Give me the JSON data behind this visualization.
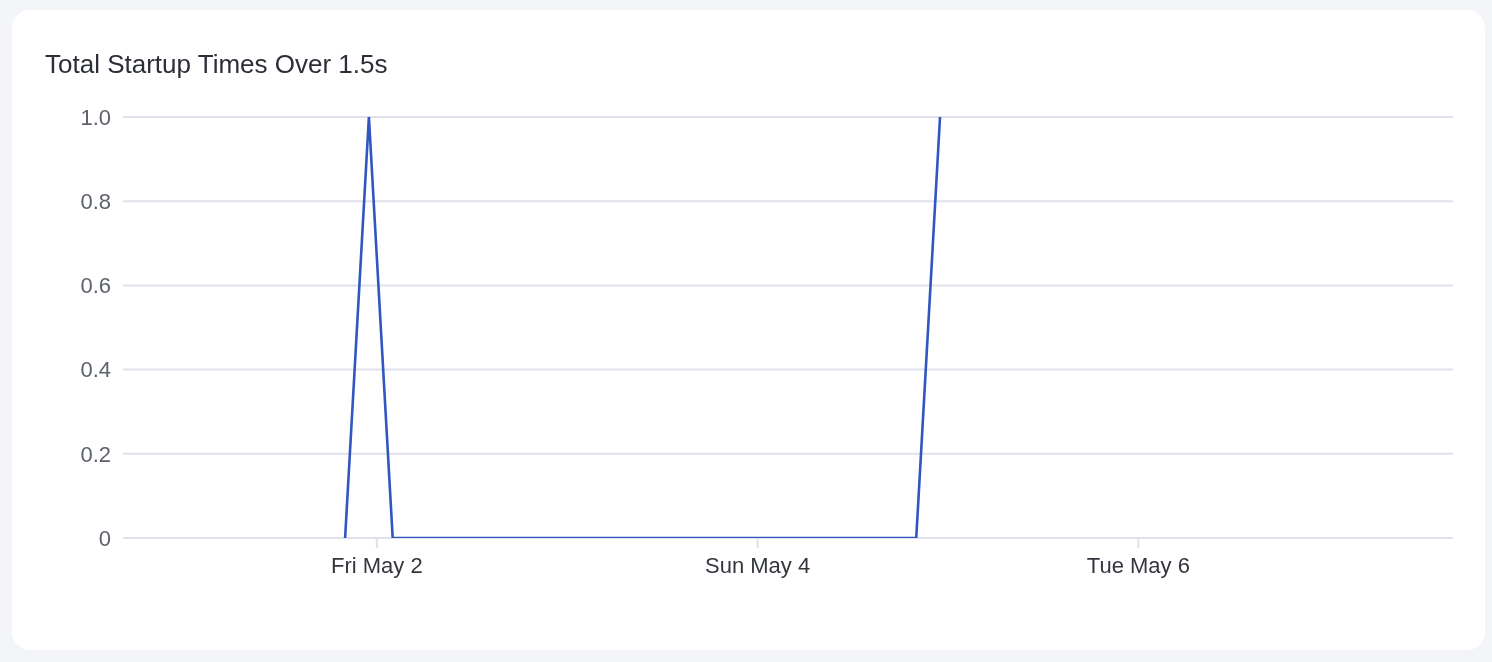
{
  "chart_data": {
    "type": "line",
    "title": "Total Startup Times Over 1.5s",
    "x": [
      "--05-01T20:00",
      "--05-01T23:00",
      "--05-02T02:00",
      "--05-04T20:00",
      "--05-04T23:00"
    ],
    "series": [
      {
        "color": "#3057bf",
        "values": [
          0,
          1,
          0,
          0,
          1
        ]
      }
    ],
    "xlim": [
      "--04-30T16:00",
      "--05-07T15:40"
    ],
    "xticks": [
      {
        "value": "--05-02",
        "label": "Fri May 2"
      },
      {
        "value": "--05-04",
        "label": "Sun May 4"
      },
      {
        "value": "--05-06",
        "label": "Tue May 6"
      }
    ],
    "ylim": [
      0,
      1
    ],
    "yticks": [
      0,
      0.2,
      0.4,
      0.6,
      0.8,
      {
        "value": 1,
        "label": "1.0"
      }
    ],
    "grid": "y",
    "line_style": "solid"
  }
}
